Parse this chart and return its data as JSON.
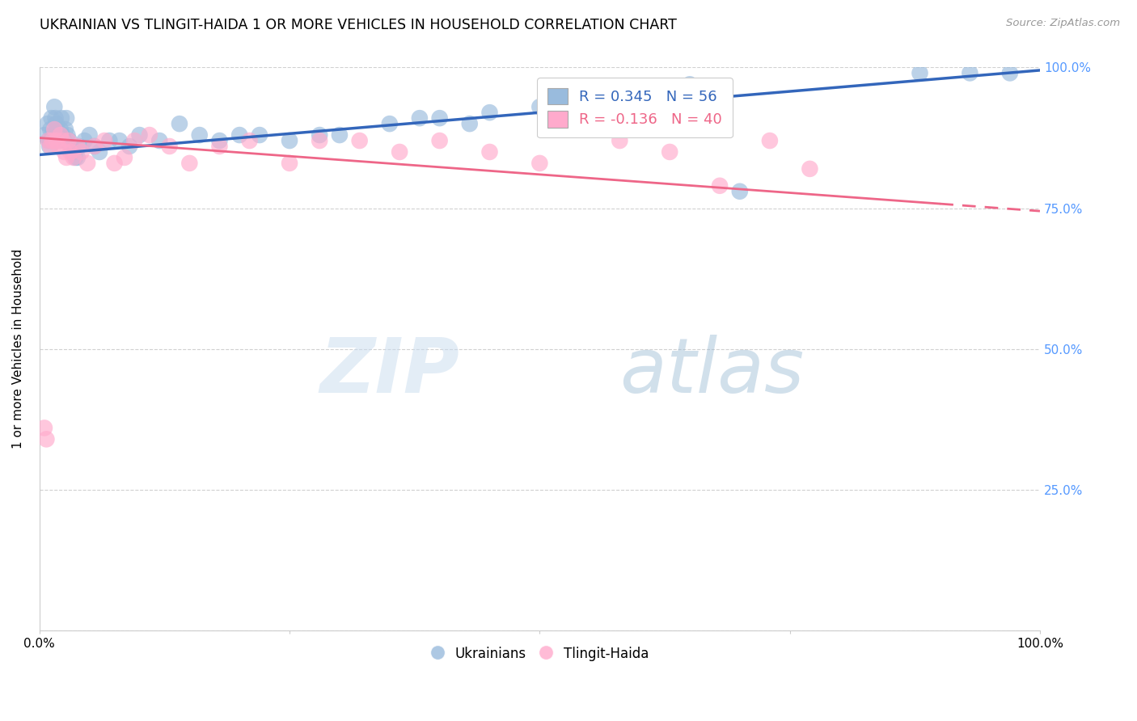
{
  "title": "UKRAINIAN VS TLINGIT-HAIDA 1 OR MORE VEHICLES IN HOUSEHOLD CORRELATION CHART",
  "source": "Source: ZipAtlas.com",
  "ylabel": "1 or more Vehicles in Household",
  "xlim": [
    0,
    1.0
  ],
  "ylim": [
    0,
    1.0
  ],
  "blue_R": 0.345,
  "blue_N": 56,
  "pink_R": -0.136,
  "pink_N": 40,
  "blue_color": "#99BBDD",
  "pink_color": "#FFAACC",
  "blue_line_color": "#3366BB",
  "pink_line_color": "#EE6688",
  "watermark_zip": "ZIP",
  "watermark_atlas": "atlas",
  "right_tick_color": "#5599FF",
  "blue_points_x": [
    0.005,
    0.008,
    0.009,
    0.01,
    0.011,
    0.012,
    0.013,
    0.015,
    0.016,
    0.017,
    0.018,
    0.019,
    0.02,
    0.021,
    0.022,
    0.023,
    0.025,
    0.026,
    0.027,
    0.028,
    0.03,
    0.032,
    0.034,
    0.036,
    0.038,
    0.04,
    0.045,
    0.05,
    0.055,
    0.06,
    0.07,
    0.08,
    0.09,
    0.1,
    0.12,
    0.14,
    0.16,
    0.18,
    0.2,
    0.22,
    0.25,
    0.28,
    0.3,
    0.35,
    0.38,
    0.4,
    0.43,
    0.45,
    0.5,
    0.55,
    0.6,
    0.65,
    0.7,
    0.88,
    0.93,
    0.97
  ],
  "blue_points_y": [
    0.88,
    0.9,
    0.87,
    0.86,
    0.89,
    0.91,
    0.88,
    0.93,
    0.91,
    0.9,
    0.89,
    0.88,
    0.87,
    0.89,
    0.91,
    0.88,
    0.87,
    0.89,
    0.91,
    0.88,
    0.87,
    0.86,
    0.85,
    0.84,
    0.84,
    0.86,
    0.87,
    0.88,
    0.86,
    0.85,
    0.87,
    0.87,
    0.86,
    0.88,
    0.87,
    0.9,
    0.88,
    0.87,
    0.88,
    0.88,
    0.87,
    0.88,
    0.88,
    0.9,
    0.91,
    0.91,
    0.9,
    0.92,
    0.93,
    0.94,
    0.95,
    0.97,
    0.78,
    0.99,
    0.99,
    0.99
  ],
  "pink_points_x": [
    0.005,
    0.007,
    0.009,
    0.011,
    0.013,
    0.015,
    0.017,
    0.019,
    0.021,
    0.023,
    0.025,
    0.027,
    0.029,
    0.031,
    0.034,
    0.038,
    0.042,
    0.048,
    0.055,
    0.065,
    0.075,
    0.085,
    0.095,
    0.11,
    0.13,
    0.15,
    0.18,
    0.21,
    0.25,
    0.28,
    0.32,
    0.36,
    0.4,
    0.45,
    0.5,
    0.58,
    0.63,
    0.68,
    0.73,
    0.77
  ],
  "pink_points_y": [
    0.36,
    0.34,
    0.87,
    0.86,
    0.87,
    0.89,
    0.87,
    0.86,
    0.88,
    0.87,
    0.85,
    0.84,
    0.87,
    0.85,
    0.84,
    0.86,
    0.85,
    0.83,
    0.86,
    0.87,
    0.83,
    0.84,
    0.87,
    0.88,
    0.86,
    0.83,
    0.86,
    0.87,
    0.83,
    0.87,
    0.87,
    0.85,
    0.87,
    0.85,
    0.83,
    0.87,
    0.85,
    0.79,
    0.87,
    0.82
  ],
  "blue_line_x0": 0.0,
  "blue_line_y0": 0.845,
  "blue_line_x1": 1.0,
  "blue_line_y1": 0.995,
  "pink_line_x0": 0.0,
  "pink_line_y0": 0.875,
  "pink_line_x1": 1.0,
  "pink_line_y1": 0.745
}
